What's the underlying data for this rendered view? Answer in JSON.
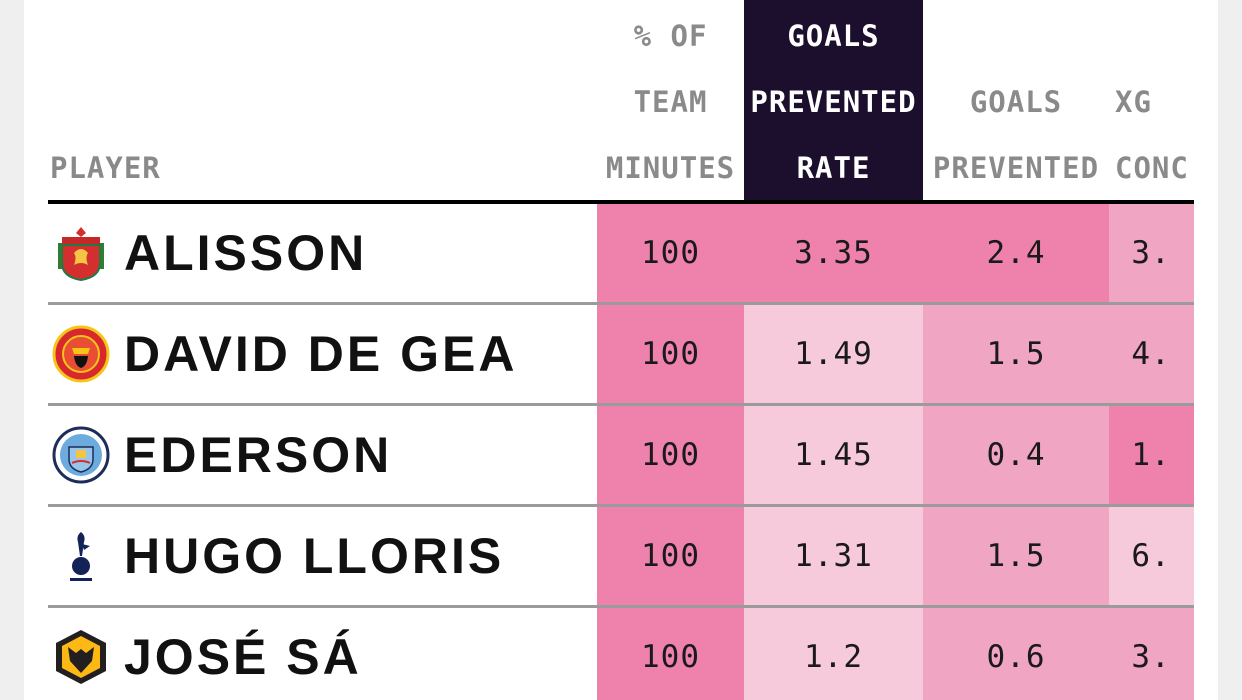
{
  "colors": {
    "highlight_header_bg": "#1c0f2d",
    "heat_low": "#f6cadb",
    "heat_mid": "#f0a5c3",
    "heat_high": "#ee82ad"
  },
  "table": {
    "headers": {
      "player": [
        "PLAYER"
      ],
      "minutes": [
        "% OF",
        "TEAM",
        "MINUTES"
      ],
      "rate": [
        "GOALS",
        "PREVENTED",
        "RATE"
      ],
      "goals_prevented": [
        "GOALS",
        "PREVENTED"
      ],
      "xg": [
        "XG",
        "CONC"
      ]
    },
    "rows": [
      {
        "crest": "liverpool-crest-icon",
        "player": "ALISSON",
        "minutes": "100",
        "rate": "3.35",
        "goals_prevented": "2.4",
        "xg": "3."
      },
      {
        "crest": "manchester-united-crest-icon",
        "player": "DAVID DE GEA",
        "minutes": "100",
        "rate": "1.49",
        "goals_prevented": "1.5",
        "xg": "4."
      },
      {
        "crest": "manchester-city-crest-icon",
        "player": "EDERSON",
        "minutes": "100",
        "rate": "1.45",
        "goals_prevented": "0.4",
        "xg": "1."
      },
      {
        "crest": "tottenham-crest-icon",
        "player": "HUGO LLORIS",
        "minutes": "100",
        "rate": "1.31",
        "goals_prevented": "1.5",
        "xg": "6."
      },
      {
        "crest": "wolves-crest-icon",
        "player": "JOSÉ SÁ",
        "minutes": "100",
        "rate": "1.2",
        "goals_prevented": "0.6",
        "xg": "3."
      }
    ]
  },
  "chart_data": {
    "type": "table",
    "columns": [
      "PLAYER",
      "% OF TEAM MINUTES",
      "GOALS PREVENTED RATE",
      "GOALS PREVENTED",
      "XG CONC"
    ],
    "rows": [
      [
        "ALISSON",
        100,
        3.35,
        2.4,
        "3."
      ],
      [
        "DAVID DE GEA",
        100,
        1.49,
        1.5,
        "4."
      ],
      [
        "EDERSON",
        100,
        1.45,
        0.4,
        "1."
      ],
      [
        "HUGO LLORIS",
        100,
        1.31,
        1.5,
        "6."
      ],
      [
        "JOSÉ SÁ",
        100,
        1.2,
        0.6,
        "3."
      ]
    ],
    "heat_levels": {
      "minutes": [
        "high",
        "high",
        "high",
        "high",
        "high"
      ],
      "rate": [
        "high",
        "low",
        "low",
        "low",
        "low"
      ],
      "goals_prevented": [
        "high",
        "mid",
        "mid",
        "mid",
        "mid"
      ],
      "xg": [
        "mid",
        "mid",
        "high",
        "low",
        "mid"
      ]
    }
  }
}
